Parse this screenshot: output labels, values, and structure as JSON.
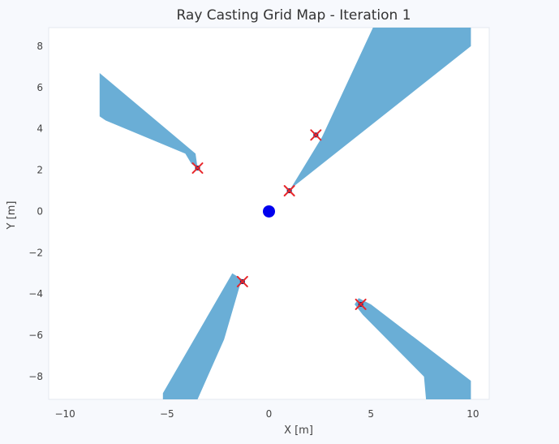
{
  "chart_data": {
    "type": "scatter",
    "title": "Ray Casting Grid Map - Iteration 1",
    "xlabel": "X [m]",
    "ylabel": "Y [m]",
    "xlim": [
      -10.8,
      10.8
    ],
    "ylim": [
      -9.1,
      8.9
    ],
    "xticks": [
      -10,
      -5,
      0,
      5,
      10
    ],
    "yticks": [
      -8,
      -6,
      -4,
      -2,
      0,
      2,
      4,
      6,
      8
    ],
    "xtick_labels": [
      "−10",
      "−5",
      "0",
      "5",
      "10"
    ],
    "ytick_labels": [
      "−8",
      "−6",
      "−4",
      "−2",
      "0",
      "2",
      "4",
      "6",
      "8"
    ],
    "grid": false,
    "colors": {
      "cells": "#6aaed6",
      "robot": "#0000ee",
      "obstacle": "#1a2a6c",
      "marker": "#e8262b",
      "background": "#f7f9fd"
    },
    "robot": {
      "x": 0,
      "y": 0
    },
    "obstacles": [
      {
        "x": 1.0,
        "y": 1.0
      },
      {
        "x": 2.3,
        "y": 3.7
      },
      {
        "x": -3.5,
        "y": 2.1
      },
      {
        "x": -1.3,
        "y": -3.4
      },
      {
        "x": 4.5,
        "y": -4.5
      }
    ],
    "shadow_regions": [
      {
        "name": "northeast",
        "polygon": [
          [
            1.0,
            1.0
          ],
          [
            2.6,
            3.6
          ],
          [
            5.1,
            8.9
          ],
          [
            9.9,
            8.9
          ],
          [
            9.9,
            8.0
          ],
          [
            1.2,
            1.2
          ]
        ]
      },
      {
        "name": "northwest",
        "polygon": [
          [
            -3.5,
            2.1
          ],
          [
            -3.6,
            2.8
          ],
          [
            -8.3,
            6.7
          ],
          [
            -8.3,
            4.6
          ],
          [
            -8.0,
            4.4
          ],
          [
            -4.1,
            2.8
          ],
          [
            -3.8,
            2.3
          ]
        ]
      },
      {
        "name": "southwest",
        "polygon": [
          [
            -1.3,
            -3.3
          ],
          [
            -1.8,
            -3.0
          ],
          [
            -5.2,
            -8.8
          ],
          [
            -5.2,
            -9.1
          ],
          [
            -3.5,
            -9.1
          ],
          [
            -2.2,
            -6.2
          ],
          [
            -1.4,
            -3.5
          ]
        ]
      },
      {
        "name": "southeast",
        "polygon": [
          [
            4.4,
            -4.2
          ],
          [
            4.2,
            -4.5
          ],
          [
            4.6,
            -5.0
          ],
          [
            7.6,
            -8.0
          ],
          [
            7.7,
            -9.1
          ],
          [
            9.9,
            -9.1
          ],
          [
            9.9,
            -8.2
          ],
          [
            5.0,
            -4.5
          ]
        ]
      }
    ]
  }
}
